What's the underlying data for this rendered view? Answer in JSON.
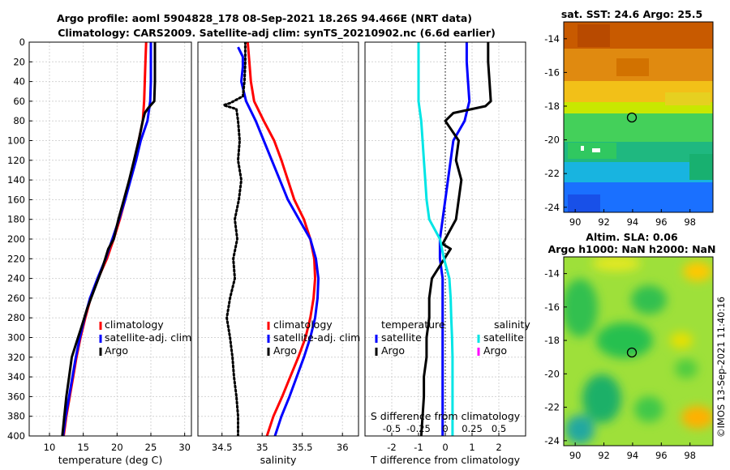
{
  "titles": {
    "line1": "Argo profile: aoml 5904828_178 08-Sep-2021 18.26S 94.466E (NRT data)",
    "line2": "Climatology: CARS2009. Satellite-adj clim: synTS_20210902.nc (6.6d earlier)"
  },
  "colors": {
    "climatology": "#ff0000",
    "satellite": "#0000ff",
    "argo": "#000000",
    "salinity_satellite": "#00e5e5",
    "salinity_argo": "#ff00ff"
  },
  "chart_data": [
    {
      "type": "line",
      "id": "temperature",
      "xlabel": "temperature (deg C)",
      "ylabel": "",
      "xlim": [
        7,
        31
      ],
      "ylim": [
        0,
        400
      ],
      "x_ticks": [
        "10",
        "15",
        "20",
        "25",
        "30"
      ],
      "y_ticks": [
        "0",
        "20",
        "40",
        "60",
        "80",
        "100",
        "120",
        "140",
        "160",
        "180",
        "200",
        "220",
        "240",
        "260",
        "280",
        "300",
        "320",
        "340",
        "360",
        "380",
        "400"
      ],
      "legend": [
        "climatology",
        "satellite-adj. clim",
        "Argo"
      ],
      "series": [
        {
          "name": "climatology",
          "color": "#ff0000",
          "points": [
            [
              24.3,
              0
            ],
            [
              24.2,
              20
            ],
            [
              24.1,
              40
            ],
            [
              24.0,
              60
            ],
            [
              23.8,
              80
            ],
            [
              23.2,
              100
            ],
            [
              22.6,
              120
            ],
            [
              21.9,
              140
            ],
            [
              21.2,
              160
            ],
            [
              20.4,
              180
            ],
            [
              19.5,
              200
            ],
            [
              18.5,
              220
            ],
            [
              17.2,
              240
            ],
            [
              16.1,
              260
            ],
            [
              15.3,
              280
            ],
            [
              14.6,
              300
            ],
            [
              14.0,
              320
            ],
            [
              13.5,
              340
            ],
            [
              13.0,
              360
            ],
            [
              12.5,
              380
            ],
            [
              12.1,
              400
            ]
          ]
        },
        {
          "name": "satellite-adj. clim",
          "color": "#0000ff",
          "points": [
            [
              25.0,
              0
            ],
            [
              25.0,
              20
            ],
            [
              25.0,
              40
            ],
            [
              24.9,
              60
            ],
            [
              24.5,
              80
            ],
            [
              23.5,
              100
            ],
            [
              22.8,
              120
            ],
            [
              22.0,
              140
            ],
            [
              21.2,
              160
            ],
            [
              20.3,
              180
            ],
            [
              19.3,
              200
            ],
            [
              18.3,
              220
            ],
            [
              17.1,
              240
            ],
            [
              16.0,
              260
            ],
            [
              15.2,
              280
            ],
            [
              14.5,
              300
            ],
            [
              13.9,
              320
            ],
            [
              13.4,
              340
            ],
            [
              12.9,
              360
            ],
            [
              12.4,
              380
            ],
            [
              12.0,
              400
            ]
          ]
        },
        {
          "name": "Argo",
          "color": "#000000",
          "points": [
            [
              25.6,
              0
            ],
            [
              25.6,
              20
            ],
            [
              25.6,
              40
            ],
            [
              25.5,
              60
            ],
            [
              24.6,
              67
            ],
            [
              24.1,
              72
            ],
            [
              23.8,
              80
            ],
            [
              23.2,
              100
            ],
            [
              22.5,
              120
            ],
            [
              21.8,
              140
            ],
            [
              21.0,
              160
            ],
            [
              20.2,
              180
            ],
            [
              19.5,
              200
            ],
            [
              18.7,
              210
            ],
            [
              17.8,
              230
            ],
            [
              16.7,
              250
            ],
            [
              15.6,
              270
            ],
            [
              14.7,
              290
            ],
            [
              14.0,
              305
            ],
            [
              13.3,
              320
            ],
            [
              12.9,
              340
            ],
            [
              12.5,
              360
            ],
            [
              12.2,
              380
            ],
            [
              11.9,
              400
            ]
          ]
        }
      ]
    },
    {
      "type": "line",
      "id": "salinity",
      "xlabel": "salinity",
      "xlim": [
        34.2,
        36.2
      ],
      "ylim": [
        0,
        400
      ],
      "x_ticks": [
        "34.5",
        "35",
        "35.5",
        "36"
      ],
      "legend": [
        "climatology",
        "satellite-adj. clim",
        "Argo"
      ],
      "series": [
        {
          "name": "climatology",
          "color": "#ff0000",
          "points": [
            [
              34.82,
              0
            ],
            [
              34.84,
              20
            ],
            [
              34.86,
              40
            ],
            [
              34.9,
              60
            ],
            [
              35.02,
              80
            ],
            [
              35.15,
              100
            ],
            [
              35.24,
              120
            ],
            [
              35.32,
              140
            ],
            [
              35.4,
              160
            ],
            [
              35.52,
              180
            ],
            [
              35.6,
              200
            ],
            [
              35.65,
              220
            ],
            [
              35.66,
              240
            ],
            [
              35.64,
              260
            ],
            [
              35.6,
              280
            ],
            [
              35.54,
              300
            ],
            [
              35.45,
              320
            ],
            [
              35.35,
              340
            ],
            [
              35.25,
              360
            ],
            [
              35.14,
              380
            ],
            [
              35.06,
              400
            ]
          ]
        },
        {
          "name": "satellite-adj. clim",
          "color": "#0000ff",
          "points": [
            [
              34.7,
              5
            ],
            [
              34.76,
              15
            ],
            [
              34.76,
              25
            ],
            [
              34.74,
              40
            ],
            [
              34.8,
              60
            ],
            [
              34.92,
              80
            ],
            [
              35.02,
              100
            ],
            [
              35.12,
              120
            ],
            [
              35.22,
              140
            ],
            [
              35.32,
              160
            ],
            [
              35.46,
              180
            ],
            [
              35.6,
              200
            ],
            [
              35.67,
              220
            ],
            [
              35.7,
              240
            ],
            [
              35.69,
              260
            ],
            [
              35.66,
              280
            ],
            [
              35.6,
              300
            ],
            [
              35.52,
              320
            ],
            [
              35.43,
              340
            ],
            [
              35.34,
              360
            ],
            [
              35.24,
              380
            ],
            [
              35.16,
              400
            ]
          ]
        },
        {
          "name": "Argo",
          "color": "#000000",
          "dotted": true,
          "points": [
            [
              34.79,
              0
            ],
            [
              34.79,
              20
            ],
            [
              34.78,
              40
            ],
            [
              34.76,
              55
            ],
            [
              34.6,
              62
            ],
            [
              34.52,
              64
            ],
            [
              34.68,
              68
            ],
            [
              34.7,
              80
            ],
            [
              34.72,
              100
            ],
            [
              34.7,
              120
            ],
            [
              34.74,
              140
            ],
            [
              34.71,
              160
            ],
            [
              34.66,
              180
            ],
            [
              34.69,
              200
            ],
            [
              34.64,
              220
            ],
            [
              34.66,
              240
            ],
            [
              34.6,
              260
            ],
            [
              34.56,
              280
            ],
            [
              34.6,
              300
            ],
            [
              34.63,
              320
            ],
            [
              34.65,
              340
            ],
            [
              34.68,
              360
            ],
            [
              34.7,
              380
            ],
            [
              34.7,
              400
            ]
          ]
        }
      ]
    },
    {
      "type": "line",
      "id": "difference",
      "xlabel": "T difference from climatology",
      "s_label": "S difference from climatology",
      "xlim": [
        -3,
        3
      ],
      "ylim": [
        0,
        400
      ],
      "x_ticks": [
        "-2",
        "-1",
        "0",
        "1",
        "2"
      ],
      "s_ticks": [
        "-0.5",
        "-0.25",
        "0",
        "0.25",
        "0.5"
      ],
      "legend_headers": [
        "temperature",
        "salinity"
      ],
      "legend_left": [
        "satellite",
        "Argo"
      ],
      "legend_right": [
        "satellite",
        "Argo"
      ],
      "series": [
        {
          "name": "T satellite",
          "color": "#0000ff",
          "points": [
            [
              0.8,
              0
            ],
            [
              0.8,
              20
            ],
            [
              0.85,
              40
            ],
            [
              0.9,
              60
            ],
            [
              0.72,
              80
            ],
            [
              0.3,
              100
            ],
            [
              0.2,
              120
            ],
            [
              0.1,
              140
            ],
            [
              0.0,
              160
            ],
            [
              -0.1,
              180
            ],
            [
              -0.2,
              200
            ],
            [
              -0.2,
              220
            ],
            [
              -0.1,
              240
            ],
            [
              -0.1,
              260
            ],
            [
              -0.1,
              280
            ],
            [
              -0.1,
              300
            ],
            [
              -0.1,
              320
            ],
            [
              -0.1,
              340
            ],
            [
              -0.1,
              360
            ],
            [
              -0.1,
              380
            ],
            [
              -0.1,
              400
            ]
          ]
        },
        {
          "name": "T Argo",
          "color": "#000000",
          "points": [
            [
              1.6,
              0
            ],
            [
              1.6,
              20
            ],
            [
              1.65,
              40
            ],
            [
              1.7,
              60
            ],
            [
              1.5,
              65
            ],
            [
              0.3,
              72
            ],
            [
              0.0,
              80
            ],
            [
              0.5,
              100
            ],
            [
              0.4,
              120
            ],
            [
              0.6,
              140
            ],
            [
              0.5,
              160
            ],
            [
              0.4,
              180
            ],
            [
              0.1,
              195
            ],
            [
              -0.1,
              205
            ],
            [
              0.2,
              210
            ],
            [
              -0.5,
              240
            ],
            [
              -0.6,
              260
            ],
            [
              -0.6,
              280
            ],
            [
              -0.7,
              300
            ],
            [
              -0.7,
              320
            ],
            [
              -0.8,
              340
            ],
            [
              -0.8,
              360
            ],
            [
              -0.85,
              380
            ],
            [
              -0.9,
              400
            ]
          ]
        },
        {
          "name": "S satellite",
          "color": "#00e5e5",
          "points": [
            [
              -1.0,
              0
            ],
            [
              -1.0,
              20
            ],
            [
              -1.0,
              40
            ],
            [
              -1.0,
              60
            ],
            [
              -0.9,
              80
            ],
            [
              -0.85,
              100
            ],
            [
              -0.8,
              120
            ],
            [
              -0.75,
              140
            ],
            [
              -0.7,
              160
            ],
            [
              -0.6,
              180
            ],
            [
              -0.2,
              200
            ],
            [
              -0.05,
              220
            ],
            [
              0.15,
              240
            ],
            [
              0.2,
              260
            ],
            [
              0.22,
              280
            ],
            [
              0.25,
              300
            ],
            [
              0.27,
              320
            ],
            [
              0.27,
              340
            ],
            [
              0.27,
              360
            ],
            [
              0.27,
              380
            ],
            [
              0.27,
              400
            ]
          ]
        }
      ]
    }
  ],
  "maps": {
    "sst": {
      "title": "sat. SST: 24.6 Argo: 25.5",
      "x_ticks": [
        "90",
        "92",
        "94",
        "96",
        "98"
      ],
      "y_ticks": [
        "-14",
        "-16",
        "-18",
        "-20",
        "-22",
        "-24"
      ],
      "marker": {
        "lon": 94.466,
        "lat": -18.26
      }
    },
    "sla": {
      "title1": "Altim. SLA: 0.06",
      "title2": "Argo h1000: NaN h2000: NaN",
      "x_ticks": [
        "90",
        "92",
        "94",
        "96",
        "98"
      ],
      "y_ticks": [
        "-14",
        "-16",
        "-18",
        "-20",
        "-22",
        "-24"
      ],
      "marker": {
        "lon": 94.466,
        "lat": -18.26
      }
    }
  },
  "watermark": "©IMOS 13-Sep-2021 11:40:16"
}
